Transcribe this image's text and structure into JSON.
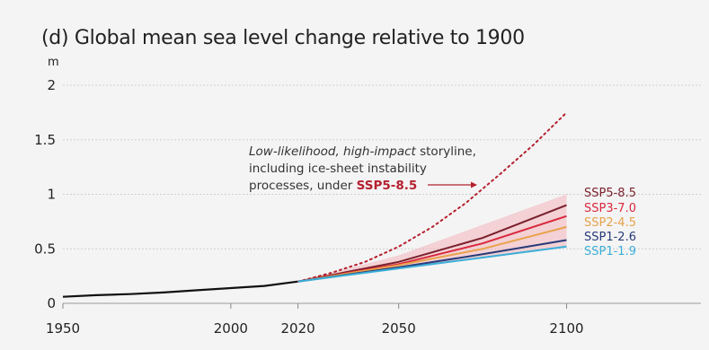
{
  "chart_data": {
    "type": "line",
    "title": "(d) Global mean sea level change relative to 1900",
    "ylabel": "m",
    "xlim": [
      1950,
      2140
    ],
    "ylim": [
      0,
      2
    ],
    "x_ticks": [
      1950,
      2000,
      2020,
      2050,
      2100
    ],
    "y_ticks": [
      0,
      0.5,
      1,
      1.5,
      2
    ],
    "y_tick_labels": [
      "0",
      "0.5",
      "1",
      "1.5",
      "2"
    ],
    "grid": "horizontal",
    "historical": {
      "color": "#111111",
      "x": [
        1950,
        1960,
        1970,
        1980,
        1990,
        2000,
        2010,
        2020
      ],
      "y": [
        0.06,
        0.075,
        0.085,
        0.1,
        0.12,
        0.14,
        0.16,
        0.2
      ]
    },
    "annotation": {
      "line1_italic": "Low-likelihood, high-impact",
      "line1_rest": " storyline,",
      "line2": "including ice-sheet instability",
      "line3_prefix": "processes, under ",
      "line3_highlight": "SSP5-8.5",
      "highlight_color": "#b5202e"
    },
    "storyline": {
      "color": "#b5202e",
      "style": "dotted",
      "x": [
        2020,
        2030,
        2040,
        2050,
        2060,
        2070,
        2080,
        2090,
        2100
      ],
      "y": [
        0.2,
        0.28,
        0.38,
        0.52,
        0.7,
        0.92,
        1.18,
        1.45,
        1.75
      ]
    },
    "series": [
      {
        "name": "SSP5-8.5",
        "color": "#7a1f2b",
        "x": [
          2020,
          2050,
          2075,
          2100
        ],
        "y": [
          0.2,
          0.38,
          0.6,
          0.9
        ],
        "band": [
          0.2,
          0.44,
          0.72,
          1.0
        ]
      },
      {
        "name": "SSP3-7.0",
        "color": "#d8283c",
        "x": [
          2020,
          2050,
          2075,
          2100
        ],
        "y": [
          0.2,
          0.36,
          0.55,
          0.8
        ]
      },
      {
        "name": "SSP2-4.5",
        "color": "#e8a24a",
        "x": [
          2020,
          2050,
          2075,
          2100
        ],
        "y": [
          0.2,
          0.35,
          0.5,
          0.7
        ]
      },
      {
        "name": "SSP1-2.6",
        "color": "#283a78",
        "x": [
          2020,
          2050,
          2075,
          2100
        ],
        "y": [
          0.2,
          0.33,
          0.45,
          0.58
        ]
      },
      {
        "name": "SSP1-1.9",
        "color": "#3aaed8",
        "x": [
          2020,
          2050,
          2075,
          2100
        ],
        "y": [
          0.2,
          0.32,
          0.42,
          0.52
        ]
      }
    ]
  }
}
